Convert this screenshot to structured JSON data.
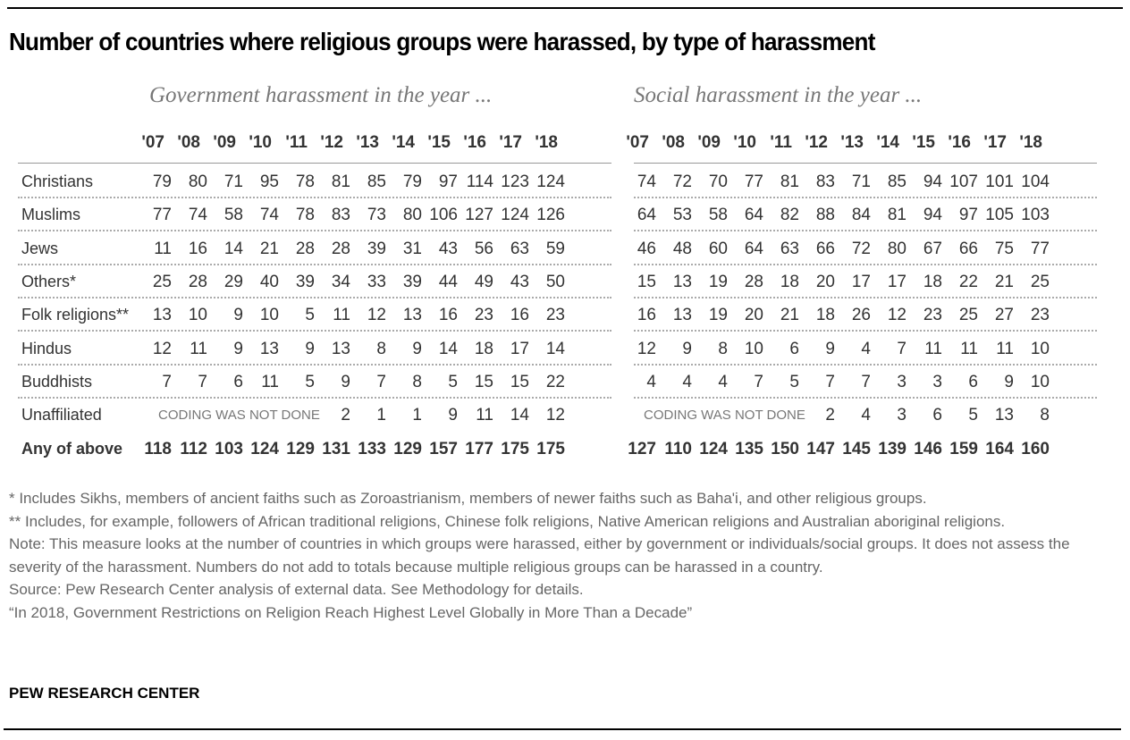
{
  "title": "Number of countries where religious groups were harassed, by type of harassment",
  "sections": {
    "government": {
      "subtitle": "Government harassment in the year ..."
    },
    "social": {
      "subtitle": "Social harassment in the year ..."
    }
  },
  "years": [
    "'07",
    "'08",
    "'09",
    "'10",
    "'11",
    "'12",
    "'13",
    "'14",
    "'15",
    "'16",
    "'17",
    "'18"
  ],
  "coding_note": "CODING WAS NOT DONE",
  "rows": [
    {
      "label": "Christians",
      "gov": [
        "79",
        "80",
        "71",
        "95",
        "78",
        "81",
        "85",
        "79",
        "97",
        "114",
        "123",
        "124"
      ],
      "soc": [
        "74",
        "72",
        "70",
        "77",
        "81",
        "83",
        "71",
        "85",
        "94",
        "107",
        "101",
        "104"
      ]
    },
    {
      "label": "Muslims",
      "gov": [
        "77",
        "74",
        "58",
        "74",
        "78",
        "83",
        "73",
        "80",
        "106",
        "127",
        "124",
        "126"
      ],
      "soc": [
        "64",
        "53",
        "58",
        "64",
        "82",
        "88",
        "84",
        "81",
        "94",
        "97",
        "105",
        "103"
      ]
    },
    {
      "label": "Jews",
      "gov": [
        "11",
        "16",
        "14",
        "21",
        "28",
        "28",
        "39",
        "31",
        "43",
        "56",
        "63",
        "59"
      ],
      "soc": [
        "46",
        "48",
        "60",
        "64",
        "63",
        "66",
        "72",
        "80",
        "67",
        "66",
        "75",
        "77"
      ]
    },
    {
      "label": "Others*",
      "gov": [
        "25",
        "28",
        "29",
        "40",
        "39",
        "34",
        "33",
        "39",
        "44",
        "49",
        "43",
        "50"
      ],
      "soc": [
        "15",
        "13",
        "19",
        "28",
        "18",
        "20",
        "17",
        "17",
        "18",
        "22",
        "21",
        "25"
      ]
    },
    {
      "label": "Folk religions**",
      "gov": [
        "13",
        "10",
        "9",
        "10",
        "5",
        "11",
        "12",
        "13",
        "16",
        "23",
        "16",
        "23"
      ],
      "soc": [
        "16",
        "13",
        "19",
        "20",
        "21",
        "18",
        "26",
        "12",
        "23",
        "25",
        "27",
        "23"
      ]
    },
    {
      "label": "Hindus",
      "gov": [
        "12",
        "11",
        "9",
        "13",
        "9",
        "13",
        "8",
        "9",
        "14",
        "18",
        "17",
        "14"
      ],
      "soc": [
        "12",
        "9",
        "8",
        "10",
        "6",
        "9",
        "4",
        "7",
        "11",
        "11",
        "11",
        "10"
      ]
    },
    {
      "label": "Buddhists",
      "gov": [
        "7",
        "7",
        "6",
        "11",
        "5",
        "9",
        "7",
        "8",
        "5",
        "15",
        "15",
        "22"
      ],
      "soc": [
        "4",
        "4",
        "4",
        "7",
        "5",
        "7",
        "7",
        "3",
        "3",
        "6",
        "9",
        "10"
      ]
    },
    {
      "label": "Unaffiliated",
      "gov": [
        "",
        "",
        "",
        "",
        "",
        "2",
        "1",
        "1",
        "9",
        "11",
        "14",
        "12"
      ],
      "soc": [
        "",
        "",
        "",
        "",
        "",
        "2",
        "4",
        "3",
        "6",
        "5",
        "13",
        "8"
      ]
    },
    {
      "label": "Any of above",
      "gov": [
        "118",
        "112",
        "103",
        "124",
        "129",
        "131",
        "133",
        "129",
        "157",
        "177",
        "175",
        "175"
      ],
      "soc": [
        "127",
        "110",
        "124",
        "135",
        "150",
        "147",
        "145",
        "139",
        "146",
        "159",
        "164",
        "160"
      ]
    }
  ],
  "footnotes": [
    "* Includes Sikhs, members of ancient faiths such as Zoroastrianism, members of newer faiths such as Baha'i, and other religious groups.",
    "** Includes, for example, followers of African traditional religions, Chinese folk religions, Native American religions and Australian aboriginal religions.",
    "Note: This measure looks at the number of countries in which groups were harassed, either by government or individuals/social groups. It does not assess the severity of the harassment. Numbers do not add to totals because multiple religious groups can be harassed in a country.",
    "Source: Pew Research Center analysis of external data. See Methodology for details.",
    "“In 2018, Government Restrictions on Religion Reach Highest Level Globally in More Than a Decade”"
  ],
  "brand": "PEW RESEARCH CENTER",
  "chart_data": {
    "type": "table",
    "title": "Number of countries where religious groups were harassed, by type of harassment",
    "columns": [
      "2007",
      "2008",
      "2009",
      "2010",
      "2011",
      "2012",
      "2013",
      "2014",
      "2015",
      "2016",
      "2017",
      "2018"
    ],
    "government_harassment": {
      "Christians": [
        79,
        80,
        71,
        95,
        78,
        81,
        85,
        79,
        97,
        114,
        123,
        124
      ],
      "Muslims": [
        77,
        74,
        58,
        74,
        78,
        83,
        73,
        80,
        106,
        127,
        124,
        126
      ],
      "Jews": [
        11,
        16,
        14,
        21,
        28,
        28,
        39,
        31,
        43,
        56,
        63,
        59
      ],
      "Others": [
        25,
        28,
        29,
        40,
        39,
        34,
        33,
        39,
        44,
        49,
        43,
        50
      ],
      "Folk religions": [
        13,
        10,
        9,
        10,
        5,
        11,
        12,
        13,
        16,
        23,
        16,
        23
      ],
      "Hindus": [
        12,
        11,
        9,
        13,
        9,
        13,
        8,
        9,
        14,
        18,
        17,
        14
      ],
      "Buddhists": [
        7,
        7,
        6,
        11,
        5,
        9,
        7,
        8,
        5,
        15,
        15,
        22
      ],
      "Unaffiliated": [
        null,
        null,
        null,
        null,
        null,
        2,
        1,
        1,
        9,
        11,
        14,
        12
      ],
      "Any of above": [
        118,
        112,
        103,
        124,
        129,
        131,
        133,
        129,
        157,
        177,
        175,
        175
      ]
    },
    "social_harassment": {
      "Christians": [
        74,
        72,
        70,
        77,
        81,
        83,
        71,
        85,
        94,
        107,
        101,
        104
      ],
      "Muslims": [
        64,
        53,
        58,
        64,
        82,
        88,
        84,
        81,
        94,
        97,
        105,
        103
      ],
      "Jews": [
        46,
        48,
        60,
        64,
        63,
        66,
        72,
        80,
        67,
        66,
        75,
        77
      ],
      "Others": [
        15,
        13,
        19,
        28,
        18,
        20,
        17,
        17,
        18,
        22,
        21,
        25
      ],
      "Folk religions": [
        16,
        13,
        19,
        20,
        21,
        18,
        26,
        12,
        23,
        25,
        27,
        23
      ],
      "Hindus": [
        12,
        9,
        8,
        10,
        6,
        9,
        4,
        7,
        11,
        11,
        11,
        10
      ],
      "Buddhists": [
        4,
        4,
        4,
        7,
        5,
        7,
        7,
        3,
        3,
        6,
        9,
        10
      ],
      "Unaffiliated": [
        null,
        null,
        null,
        null,
        null,
        2,
        4,
        3,
        6,
        5,
        13,
        8
      ],
      "Any of above": [
        127,
        110,
        124,
        135,
        150,
        147,
        145,
        139,
        146,
        159,
        164,
        160
      ]
    }
  }
}
